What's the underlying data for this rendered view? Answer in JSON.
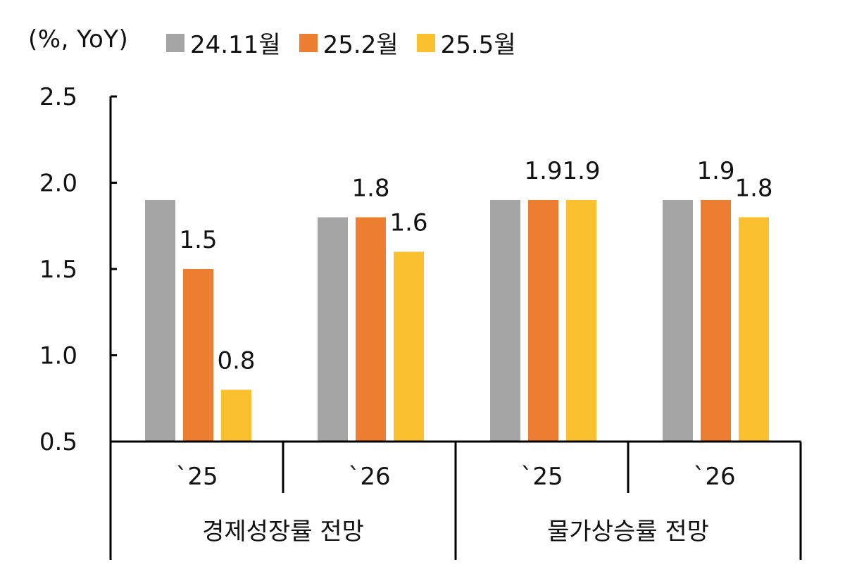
{
  "chart_data": {
    "type": "bar",
    "unit_label": "(%, YoY)",
    "ylim": [
      0.5,
      2.5
    ],
    "yticks": [
      "0.5",
      "1.0",
      "1.5",
      "2.0",
      "2.5"
    ],
    "grid": false,
    "legend_position": "top",
    "series": [
      {
        "name": "24.11월",
        "color": "#A5A5A5",
        "values": [
          1.9,
          1.8,
          1.9,
          1.9
        ],
        "labels": [
          "",
          "",
          "",
          ""
        ]
      },
      {
        "name": "25.2월",
        "color": "#ED7D31",
        "values": [
          1.5,
          1.8,
          1.9,
          1.9
        ],
        "labels": [
          "1.5",
          "1.8",
          "1.9",
          "1.9"
        ]
      },
      {
        "name": "25.5월",
        "color": "#FBC02D",
        "values": [
          0.8,
          1.6,
          1.9,
          1.8
        ],
        "labels": [
          "0.8",
          "1.6",
          "1.9",
          "1.8"
        ]
      }
    ],
    "categories": [
      "`25",
      "`26",
      "`25",
      "`26"
    ],
    "groups": [
      {
        "label": "경제성장률 전망",
        "span": [
          0,
          1
        ]
      },
      {
        "label": "물가상승률 전망",
        "span": [
          2,
          3
        ]
      }
    ]
  }
}
